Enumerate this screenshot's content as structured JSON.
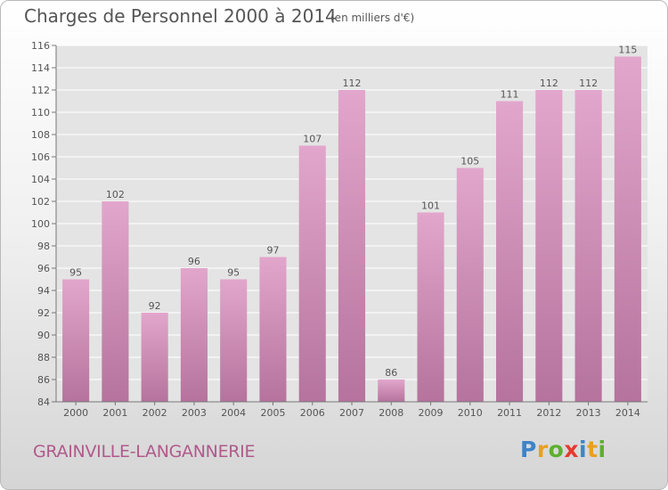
{
  "title": "Charges de Personnel 2000 à 2014",
  "subtitle": "(en milliers d'€)",
  "commune": "GRAINVILLE-LANGANNERIE",
  "logo": {
    "letters": [
      "P",
      "r",
      "o",
      "x",
      "i",
      "t",
      "i"
    ]
  },
  "colors": {
    "bar_top": "#e2a6cc",
    "bar_bottom": "#b5739d",
    "axis_text": "#555555",
    "grid": "#ffffff",
    "commune_text": "#b05a8c"
  },
  "chart_data": {
    "type": "bar",
    "title": "Charges de Personnel 2000 à 2014",
    "subtitle": "(en milliers d'€)",
    "xlabel": "",
    "ylabel": "",
    "categories": [
      "2000",
      "2001",
      "2002",
      "2003",
      "2004",
      "2005",
      "2006",
      "2007",
      "2008",
      "2009",
      "2010",
      "2011",
      "2012",
      "2013",
      "2014"
    ],
    "values": [
      95,
      102,
      92,
      96,
      95,
      97,
      107,
      112,
      86,
      101,
      105,
      111,
      112,
      112,
      115
    ],
    "ylim": [
      84,
      116
    ],
    "yticks": [
      84,
      86,
      88,
      90,
      92,
      94,
      96,
      98,
      100,
      102,
      104,
      106,
      108,
      110,
      112,
      114,
      116
    ],
    "grid": true,
    "legend": "none"
  }
}
